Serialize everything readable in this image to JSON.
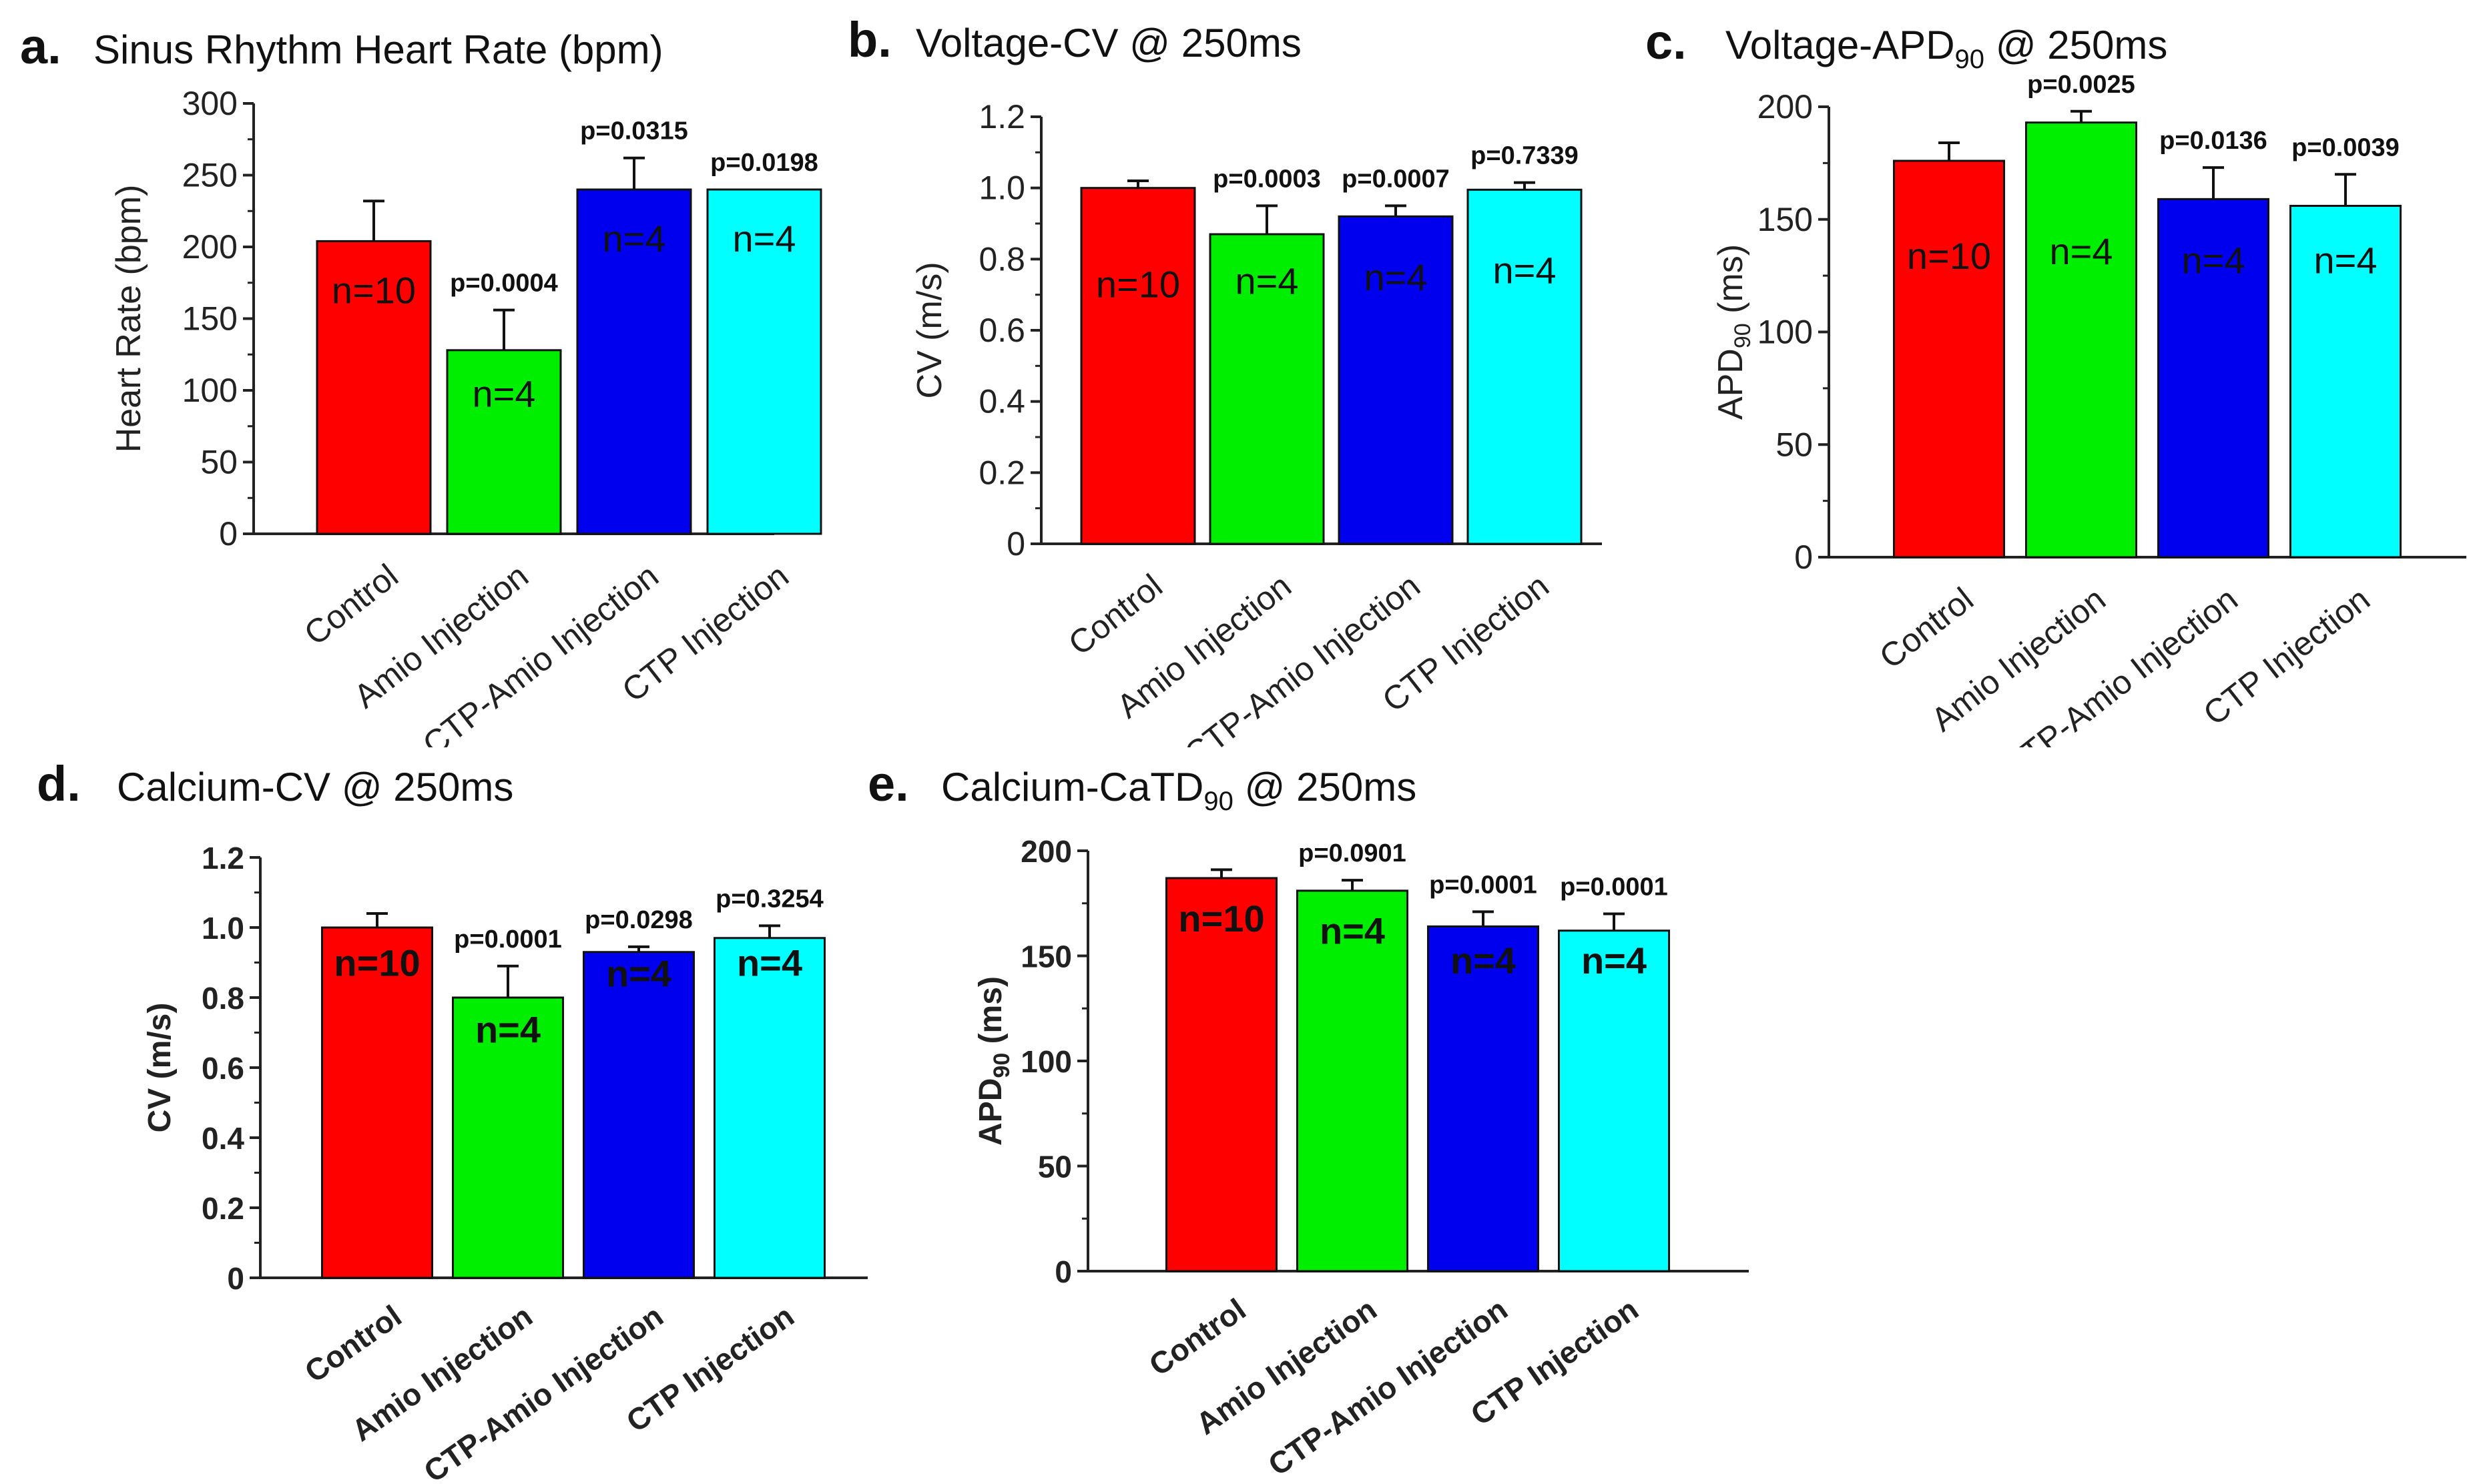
{
  "chart_data": [
    {
      "id": "a",
      "type": "bar",
      "panel_letter": "a.",
      "title": "Sinus Rhythm Heart Rate (bpm)",
      "title_sub": "",
      "title_after": "",
      "ylabel": "Heart Rate (bpm)",
      "ylabel_sub": "",
      "ylabel_after": "",
      "ylim": [
        0,
        300
      ],
      "yticks": [
        0,
        50,
        100,
        150,
        200,
        250,
        300
      ],
      "ytick_labels": [
        "0",
        "50",
        "100",
        "150",
        "200",
        "250",
        "300"
      ],
      "bold_axis": false,
      "categories": [
        "Control",
        "Amio Injection",
        "CTP-Amio Injection",
        "CTP Injection"
      ],
      "values": [
        204,
        128,
        240,
        240
      ],
      "errors": [
        28,
        28,
        22,
        0
      ],
      "n_labels": [
        "n=10",
        "n=4",
        "n=4",
        "n=4"
      ],
      "n_positions": [
        170,
        98,
        206,
        206
      ],
      "p_values": [
        "",
        "p=0.0004",
        "p=0.0315",
        "p=0.0198"
      ],
      "colors": [
        "#ff0000",
        "#00ee00",
        "#0000ee",
        "#00ffff"
      ]
    },
    {
      "id": "b",
      "type": "bar",
      "panel_letter": "b.",
      "title": "Voltage-CV @ 250ms",
      "title_sub": "",
      "title_after": "",
      "ylabel": "CV (m/s)",
      "ylabel_sub": "",
      "ylabel_after": "",
      "ylim": [
        0,
        1.2
      ],
      "yticks": [
        0,
        0.2,
        0.4,
        0.6,
        0.8,
        1.0,
        1.2
      ],
      "ytick_labels": [
        "0",
        "0.2",
        "0.4",
        "0.6",
        "0.8",
        "1.0",
        "1.2"
      ],
      "bold_axis": false,
      "categories": [
        "Control",
        "Amio Injection",
        "CTP-Amio Injection",
        "CTP Injection"
      ],
      "values": [
        1.0,
        0.87,
        0.92,
        0.995
      ],
      "errors": [
        0.02,
        0.08,
        0.03,
        0.02
      ],
      "n_labels": [
        "n=10",
        "n=4",
        "n=4",
        "n=4"
      ],
      "n_positions": [
        0.73,
        0.74,
        0.75,
        0.77
      ],
      "p_values": [
        "",
        "p=0.0003",
        "p=0.0007",
        "p=0.7339"
      ],
      "colors": [
        "#ff0000",
        "#00ee00",
        "#0000ee",
        "#00ffff"
      ]
    },
    {
      "id": "c",
      "type": "bar",
      "panel_letter": "c.",
      "title": "Voltage-APD",
      "title_sub": "90",
      "title_after": " @ 250ms",
      "ylabel": "APD",
      "ylabel_sub": "90",
      "ylabel_after": " (ms)",
      "ylim": [
        0,
        200
      ],
      "yticks": [
        0,
        50,
        100,
        150,
        200
      ],
      "ytick_labels": [
        "0",
        "50",
        "100",
        "150",
        "200"
      ],
      "bold_axis": false,
      "categories": [
        "Control",
        "Amio Injection",
        "CTP-Amio Injection",
        "CTP Injection"
      ],
      "values": [
        176,
        193,
        159,
        156
      ],
      "errors": [
        8,
        5,
        14,
        14
      ],
      "n_labels": [
        "n=10",
        "n=4",
        "n=4",
        "n=4"
      ],
      "n_positions": [
        134,
        136,
        132,
        132
      ],
      "p_values": [
        "",
        "p=0.0025",
        "p=0.0136",
        "p=0.0039"
      ],
      "colors": [
        "#ff0000",
        "#00ee00",
        "#0000ee",
        "#00ffff"
      ]
    },
    {
      "id": "d",
      "type": "bar",
      "panel_letter": "d.",
      "title": "Calcium-CV @ 250ms",
      "title_sub": "",
      "title_after": "",
      "ylabel": "CV (m/s)",
      "ylabel_sub": "",
      "ylabel_after": "",
      "ylim": [
        0,
        1.2
      ],
      "yticks": [
        0,
        0.2,
        0.4,
        0.6,
        0.8,
        1.0,
        1.2
      ],
      "ytick_labels": [
        "0",
        "0.2",
        "0.4",
        "0.6",
        "0.8",
        "1.0",
        "1.2"
      ],
      "bold_axis": true,
      "categories": [
        "Control",
        "Amio Injection",
        "CTP-Amio Injection",
        "CTP Injection"
      ],
      "values": [
        1.0,
        0.8,
        0.93,
        0.97
      ],
      "errors": [
        0.04,
        0.09,
        0.015,
        0.035
      ],
      "n_labels": [
        "n=10",
        "n=4",
        "n=4",
        "n=4"
      ],
      "n_positions": [
        0.9,
        0.71,
        0.87,
        0.9
      ],
      "p_values": [
        "",
        "p=0.0001",
        "p=0.0298",
        "p=0.3254"
      ],
      "colors": [
        "#ff0000",
        "#00ee00",
        "#0000ee",
        "#00ffff"
      ]
    },
    {
      "id": "e",
      "type": "bar",
      "panel_letter": "e.",
      "title": "Calcium-CaTD",
      "title_sub": "90",
      "title_after": " @ 250ms",
      "ylabel": "APD",
      "ylabel_sub": "90",
      "ylabel_after": " (ms)",
      "ylim": [
        0,
        200
      ],
      "yticks": [
        0,
        50,
        100,
        150,
        200
      ],
      "ytick_labels": [
        "0",
        "50",
        "100",
        "150",
        "200"
      ],
      "bold_axis": true,
      "categories": [
        "Control",
        "Amio Injection",
        "CTP-Amio Injection",
        "CTP Injection"
      ],
      "values": [
        187,
        181,
        164,
        162
      ],
      "errors": [
        4,
        5,
        7,
        8
      ],
      "n_labels": [
        "n=10",
        "n=4",
        "n=4",
        "n=4"
      ],
      "n_positions": [
        168,
        162,
        148,
        148
      ],
      "p_values": [
        "",
        "p=0.0901",
        "p=0.0001",
        "p=0.0001"
      ],
      "colors": [
        "#ff0000",
        "#00ee00",
        "#0000ee",
        "#00ffff"
      ]
    }
  ]
}
